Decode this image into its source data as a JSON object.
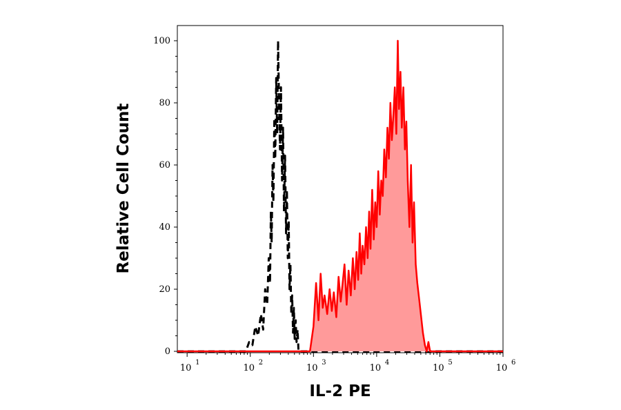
{
  "chart_data": {
    "type": "area",
    "xlabel": "IL-2 PE",
    "ylabel": "Relative Cell Count",
    "x_scale": "log",
    "xlim": [
      7,
      1000000
    ],
    "ylim": [
      0,
      102
    ],
    "x_ticks": [
      {
        "base": "10",
        "exp": "1",
        "value": 10
      },
      {
        "base": "10",
        "exp": "2",
        "value": 100
      },
      {
        "base": "10",
        "exp": "3",
        "value": 1000
      },
      {
        "base": "10",
        "exp": "4",
        "value": 10000
      },
      {
        "base": "10",
        "exp": "5",
        "value": 100000
      },
      {
        "base": "10",
        "exp": "6",
        "value": 1000000
      }
    ],
    "y_ticks": [
      "0",
      "20",
      "40",
      "60",
      "80",
      "100"
    ],
    "series": [
      {
        "style": "dashed",
        "line_color": "#000000",
        "fill": false,
        "x": [
          7,
          85,
          96,
          108,
          120,
          133,
          147,
          160,
          172,
          185,
          196,
          205,
          212,
          218,
          225,
          232,
          240,
          248,
          257,
          266,
          275,
          285,
          295,
          306,
          318,
          330,
          342,
          355,
          368,
          380,
          392,
          405,
          418,
          432,
          446,
          460,
          475,
          490,
          505,
          522,
          540,
          560,
          580,
          1000000
        ],
        "y": [
          0,
          0,
          3,
          2,
          8,
          5,
          12,
          7,
          20,
          15,
          30,
          22,
          45,
          35,
          60,
          48,
          75,
          62,
          88,
          70,
          100,
          80,
          65,
          85,
          55,
          72,
          45,
          63,
          38,
          52,
          30,
          42,
          20,
          28,
          12,
          18,
          6,
          14,
          4,
          10,
          3,
          7,
          0,
          0
        ]
      },
      {
        "style": "solid",
        "line_color": "#ff0000",
        "fill": true,
        "fill_color": "#ff9a9a",
        "x": [
          7,
          880,
          1000,
          1100,
          1200,
          1300,
          1400,
          1500,
          1650,
          1800,
          1950,
          2100,
          2300,
          2500,
          2700,
          2900,
          3100,
          3350,
          3600,
          3900,
          4200,
          4500,
          4800,
          5100,
          5400,
          5700,
          6000,
          6400,
          6800,
          7200,
          7600,
          8000,
          8500,
          9000,
          9500,
          10000,
          10600,
          11200,
          11800,
          12500,
          13200,
          14000,
          14800,
          15600,
          16500,
          17400,
          18400,
          19400,
          20500,
          21600,
          22600,
          23800,
          25000,
          26500,
          28000,
          29500,
          31000,
          33000,
          35000,
          37000,
          39000,
          41500,
          44000,
          47000,
          50000,
          54000,
          58000,
          62000,
          66000,
          70000,
          1000000
        ],
        "y": [
          0,
          0,
          8,
          22,
          10,
          25,
          14,
          18,
          12,
          20,
          13,
          19,
          11,
          24,
          16,
          22,
          28,
          15,
          26,
          18,
          30,
          20,
          32,
          23,
          38,
          25,
          34,
          28,
          40,
          30,
          45,
          33,
          52,
          36,
          48,
          40,
          58,
          44,
          55,
          50,
          65,
          56,
          72,
          62,
          80,
          68,
          76,
          85,
          70,
          100,
          78,
          90,
          72,
          85,
          65,
          74,
          55,
          40,
          60,
          35,
          48,
          28,
          22,
          17,
          12,
          6,
          2,
          0,
          3,
          0,
          0
        ]
      }
    ],
    "grid": false,
    "legend": "none"
  }
}
